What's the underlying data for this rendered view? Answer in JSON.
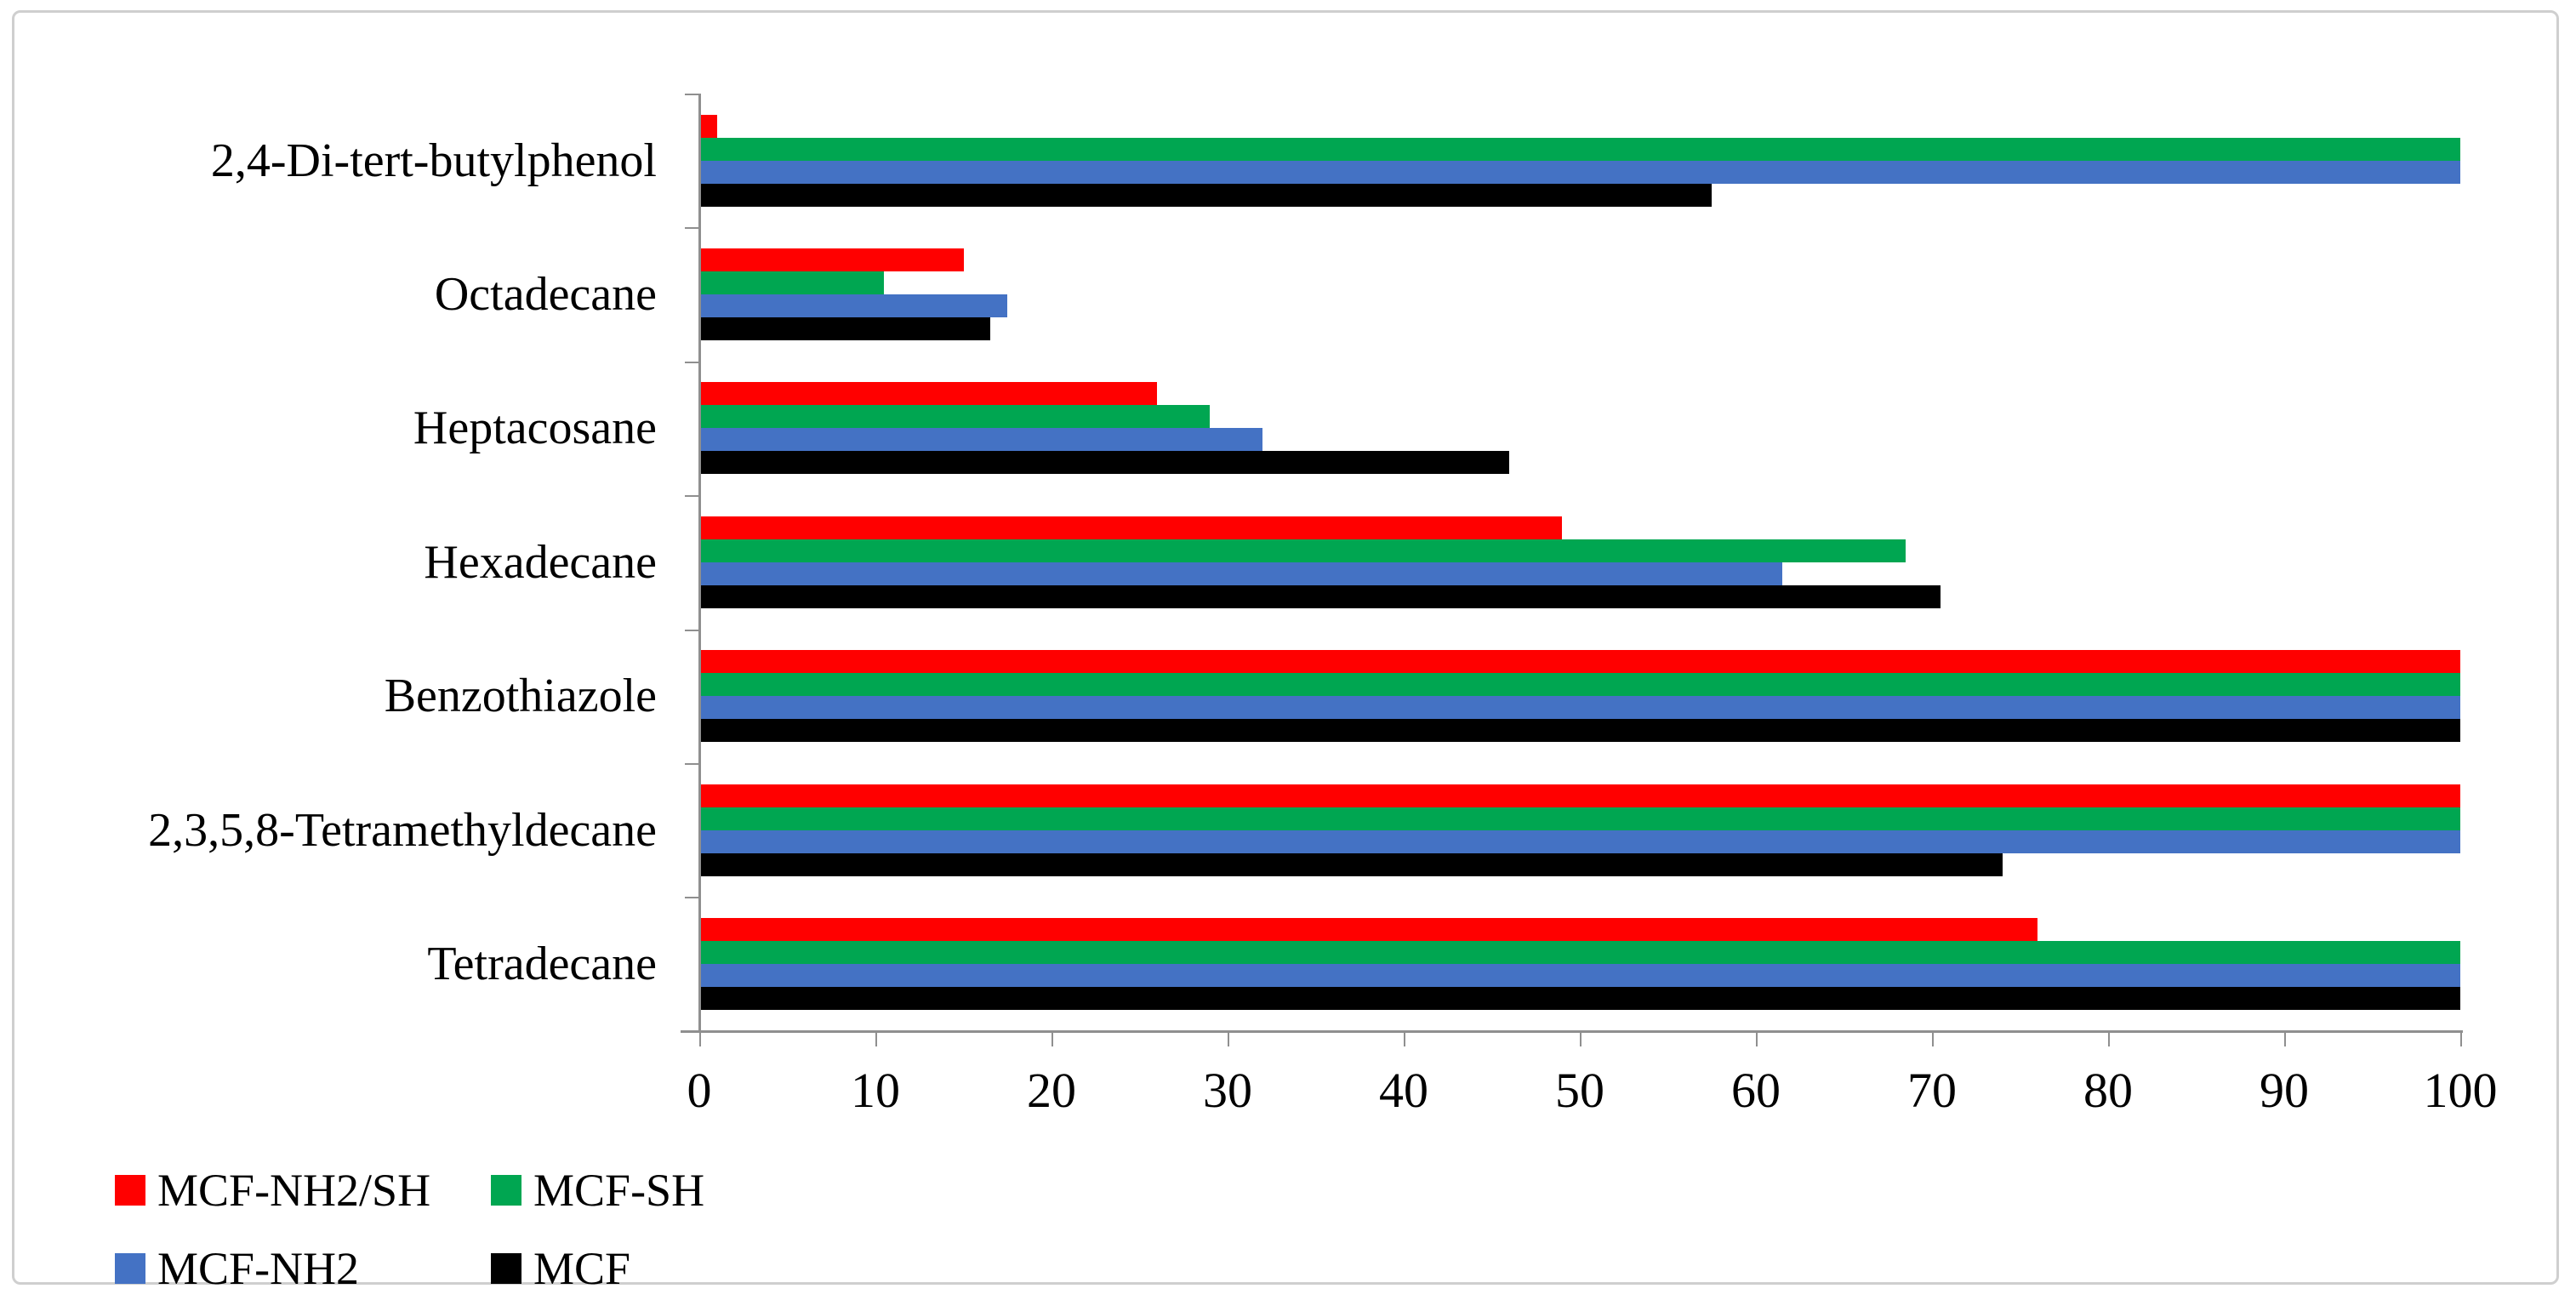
{
  "chart_data": {
    "type": "bar",
    "orientation": "horizontal",
    "title": "",
    "xlabel": "",
    "ylabel": "",
    "grid": false,
    "categories": [
      "2,4-Di-tert-butylphenol",
      "Octadecane",
      "Heptacosane",
      "Hexadecane",
      "Benzothiazole",
      "2,3,5,8-Tetramethyldecane",
      "Tetradecane"
    ],
    "series": [
      {
        "name": "MCF-NH2/SH",
        "color": "#ff0000",
        "values": [
          1,
          15,
          26,
          49,
          100,
          100,
          76
        ]
      },
      {
        "name": "MCF-SH",
        "color": "#00a651",
        "values": [
          100,
          10.5,
          29,
          68.5,
          100,
          100,
          100
        ]
      },
      {
        "name": "MCF-NH2",
        "color": "#4472c4",
        "values": [
          100,
          17.5,
          32,
          61.5,
          100,
          100,
          100
        ]
      },
      {
        "name": "MCF",
        "color": "#000000",
        "values": [
          57.5,
          16.5,
          46,
          70.5,
          100,
          74,
          100
        ]
      }
    ],
    "x_axis": {
      "min": 0,
      "max": 100,
      "tick_step": 10,
      "tick_labels": [
        "0",
        "10",
        "20",
        "30",
        "40",
        "50",
        "60",
        "70",
        "80",
        "90",
        "100"
      ]
    },
    "legend": {
      "position": "bottom-left",
      "rows": [
        [
          "MCF-NH2/SH",
          "MCF-SH"
        ],
        [
          "MCF-NH2",
          "MCF"
        ]
      ]
    }
  },
  "styles": {
    "axis_color": "#8f8f8f",
    "frame_border_color": "#cfcfcf",
    "background": "#ffffff"
  }
}
